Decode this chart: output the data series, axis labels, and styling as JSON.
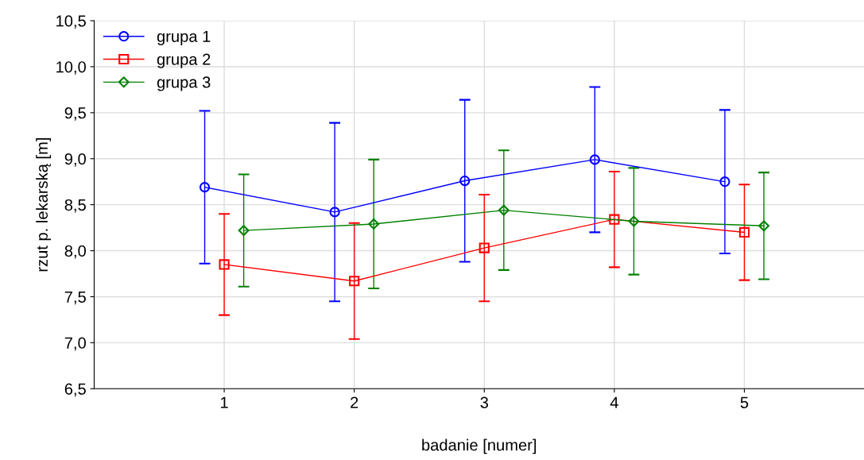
{
  "chart_data": {
    "type": "line",
    "xlabel": "badanie [numer]",
    "ylabel": "rzut p. lekarską [m]",
    "xlim": [
      0,
      5.92
    ],
    "xticks": [
      1,
      2,
      3,
      4,
      5
    ],
    "ylim": [
      6.5,
      10.5
    ],
    "yticks": [
      {
        "value": 6.5,
        "label": "6,5"
      },
      {
        "value": 7.0,
        "label": "7,0"
      },
      {
        "value": 7.5,
        "label": "7,5"
      },
      {
        "value": 8.0,
        "label": "8,0"
      },
      {
        "value": 8.5,
        "label": "8,5"
      },
      {
        "value": 9.0,
        "label": "9,0"
      },
      {
        "value": 9.5,
        "label": "9,5"
      },
      {
        "value": 10.0,
        "label": "10,0"
      },
      {
        "value": 10.5,
        "label": "10,5"
      }
    ],
    "grid": true,
    "legend": "top left",
    "series": [
      {
        "name": "grupa 1",
        "color": "#0000ff",
        "marker": "circle",
        "x": [
          0.85,
          1.85,
          2.85,
          3.85,
          4.85
        ],
        "values": [
          8.69,
          8.42,
          8.76,
          8.99,
          8.75
        ],
        "errors": [
          0.83,
          0.97,
          0.88,
          0.79,
          0.78
        ]
      },
      {
        "name": "grupa 2",
        "color": "#ff0000",
        "marker": "square",
        "x": [
          1,
          2,
          3,
          4,
          5
        ],
        "values": [
          7.85,
          7.67,
          8.03,
          8.34,
          8.2
        ],
        "errors": [
          0.55,
          0.63,
          0.58,
          0.52,
          0.52
        ]
      },
      {
        "name": "grupa 3",
        "color": "#008000",
        "marker": "diamond",
        "x": [
          1.15,
          2.15,
          3.15,
          4.15,
          5.15
        ],
        "values": [
          8.22,
          8.29,
          8.44,
          8.32,
          8.27
        ],
        "errors": [
          0.61,
          0.7,
          0.65,
          0.58,
          0.58
        ]
      }
    ]
  }
}
